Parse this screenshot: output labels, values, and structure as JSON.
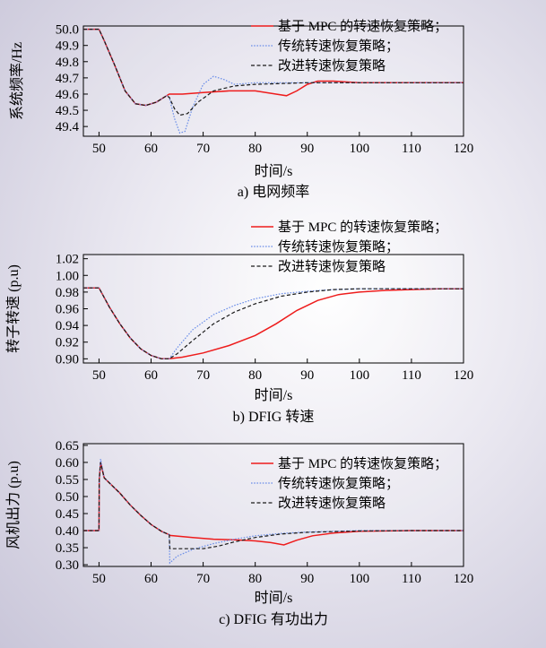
{
  "colors": {
    "mpc": "#ee1c1c",
    "traditional": "#6b8ee8",
    "improved": "#1a1a1a"
  },
  "chart_data": [
    {
      "type": "line",
      "caption": "a) 电网频率",
      "xlabel": "时间/s",
      "ylabel": "系统频率/Hz",
      "xlim": [
        47,
        120
      ],
      "ylim": [
        49.34,
        50.02
      ],
      "xticks": [
        50,
        60,
        70,
        80,
        90,
        100,
        110,
        120
      ],
      "yticks": [
        49.4,
        49.5,
        49.6,
        49.7,
        49.8,
        49.9,
        50.0
      ],
      "ytick_labels": [
        "49.4",
        "49.5",
        "49.6",
        "49.7",
        "49.8",
        "49.9",
        "50.0"
      ],
      "legend_position": "top-right",
      "series": [
        {
          "name": "基于 MPC 的转速恢复策略；",
          "style": "solid",
          "color_key": "mpc",
          "x": [
            47,
            50,
            51,
            53,
            55,
            57,
            59,
            61,
            63,
            63.5,
            66,
            70,
            75,
            80,
            84,
            86,
            88,
            90,
            92,
            95,
            100,
            110,
            120
          ],
          "y": [
            50.0,
            50.0,
            49.93,
            49.78,
            49.62,
            49.54,
            49.53,
            49.55,
            49.59,
            49.6,
            49.6,
            49.61,
            49.62,
            49.62,
            49.6,
            49.59,
            49.62,
            49.66,
            49.68,
            49.68,
            49.67,
            49.67,
            49.67
          ]
        },
        {
          "name": "传统转速恢复策略；",
          "style": "dotted",
          "color_key": "traditional",
          "x": [
            47,
            50,
            51,
            53,
            55,
            57,
            59,
            61,
            63,
            63.5,
            64.5,
            65.5,
            66.5,
            68,
            70,
            72,
            74,
            76,
            80,
            90,
            100,
            110,
            120
          ],
          "y": [
            50.0,
            50.0,
            49.93,
            49.78,
            49.62,
            49.54,
            49.53,
            49.55,
            49.59,
            49.58,
            49.45,
            49.36,
            49.37,
            49.52,
            49.66,
            49.71,
            49.69,
            49.66,
            49.67,
            49.67,
            49.67,
            49.67,
            49.67
          ]
        },
        {
          "name": "改进转速恢复策略",
          "style": "dashed",
          "color_key": "improved",
          "x": [
            47,
            50,
            51,
            53,
            55,
            57,
            59,
            61,
            63,
            63.5,
            64.5,
            65.5,
            67,
            69,
            72,
            76,
            80,
            90,
            100,
            110,
            120
          ],
          "y": [
            50.0,
            50.0,
            49.93,
            49.78,
            49.62,
            49.54,
            49.53,
            49.55,
            49.59,
            49.58,
            49.51,
            49.47,
            49.48,
            49.55,
            49.62,
            49.65,
            49.66,
            49.67,
            49.67,
            49.67,
            49.67
          ]
        }
      ]
    },
    {
      "type": "line",
      "caption": "b) DFIG 转速",
      "xlabel": "时间/s",
      "ylabel": "转子转速 (p.u)",
      "xlim": [
        47,
        120
      ],
      "ylim": [
        0.895,
        1.025
      ],
      "xticks": [
        50,
        60,
        70,
        80,
        90,
        100,
        110,
        120
      ],
      "yticks": [
        0.9,
        0.92,
        0.94,
        0.96,
        0.98,
        1.0,
        1.02
      ],
      "ytick_labels": [
        "0.90",
        "0.92",
        "0.94",
        "0.96",
        "0.98",
        "1.00",
        "1.02"
      ],
      "legend_position": "top-right",
      "series": [
        {
          "name": "基于 MPC 的转速恢复策略；",
          "style": "solid",
          "color_key": "mpc",
          "x": [
            47,
            50,
            52,
            54,
            56,
            58,
            60,
            62,
            63.5,
            66,
            70,
            75,
            80,
            84,
            88,
            92,
            96,
            100,
            105,
            110,
            115,
            120
          ],
          "y": [
            0.985,
            0.985,
            0.962,
            0.942,
            0.925,
            0.912,
            0.904,
            0.9,
            0.9,
            0.902,
            0.907,
            0.916,
            0.928,
            0.942,
            0.958,
            0.97,
            0.977,
            0.98,
            0.982,
            0.983,
            0.984,
            0.984
          ]
        },
        {
          "name": "传统转速恢复策略；",
          "style": "dotted",
          "color_key": "traditional",
          "x": [
            47,
            50,
            52,
            54,
            56,
            58,
            60,
            62,
            63.5,
            65,
            68,
            72,
            76,
            80,
            85,
            90,
            95,
            100,
            110,
            120
          ],
          "y": [
            0.985,
            0.985,
            0.962,
            0.942,
            0.925,
            0.912,
            0.904,
            0.9,
            0.9,
            0.913,
            0.935,
            0.953,
            0.964,
            0.972,
            0.978,
            0.981,
            0.983,
            0.984,
            0.984,
            0.984
          ]
        },
        {
          "name": "改进转速恢复策略",
          "style": "dashed",
          "color_key": "improved",
          "x": [
            47,
            50,
            52,
            54,
            56,
            58,
            60,
            62,
            63.5,
            65,
            68,
            72,
            76,
            80,
            85,
            90,
            95,
            100,
            110,
            120
          ],
          "y": [
            0.985,
            0.985,
            0.962,
            0.942,
            0.925,
            0.912,
            0.904,
            0.9,
            0.9,
            0.906,
            0.922,
            0.942,
            0.956,
            0.966,
            0.975,
            0.98,
            0.983,
            0.984,
            0.984,
            0.984
          ]
        }
      ]
    },
    {
      "type": "line",
      "caption": "c) DFIG 有功出力",
      "xlabel": "时间/s",
      "ylabel": "风机出力 (p.u)",
      "xlim": [
        47,
        120
      ],
      "ylim": [
        0.295,
        0.655
      ],
      "xticks": [
        50,
        60,
        70,
        80,
        90,
        100,
        110,
        120
      ],
      "yticks": [
        0.3,
        0.35,
        0.4,
        0.45,
        0.5,
        0.55,
        0.6,
        0.65
      ],
      "ytick_labels": [
        "0.30",
        "0.35",
        "0.40",
        "0.45",
        "0.50",
        "0.55",
        "0.60",
        "0.65"
      ],
      "legend_position": "top-right",
      "series": [
        {
          "name": "基于 MPC 的转速恢复策略；",
          "style": "solid",
          "color_key": "mpc",
          "x": [
            47,
            50,
            50.05,
            50.3,
            51,
            52,
            54,
            56,
            58,
            60,
            62,
            63.5,
            63.6,
            68,
            72,
            76,
            80,
            83,
            85.5,
            88,
            91,
            95,
            100,
            110,
            120
          ],
          "y": [
            0.4,
            0.4,
            0.55,
            0.6,
            0.555,
            0.54,
            0.51,
            0.475,
            0.445,
            0.418,
            0.398,
            0.388,
            0.386,
            0.38,
            0.375,
            0.373,
            0.37,
            0.365,
            0.358,
            0.372,
            0.385,
            0.393,
            0.398,
            0.4,
            0.4
          ]
        },
        {
          "name": "传统转速恢复策略；",
          "style": "dotted",
          "color_key": "traditional",
          "x": [
            47,
            50,
            50.05,
            50.3,
            51,
            52,
            54,
            56,
            58,
            60,
            62,
            63.5,
            63.6,
            65,
            68,
            72,
            76,
            80,
            85,
            90,
            100,
            110,
            120
          ],
          "y": [
            0.4,
            0.4,
            0.55,
            0.61,
            0.555,
            0.54,
            0.51,
            0.475,
            0.445,
            0.418,
            0.398,
            0.388,
            0.305,
            0.325,
            0.345,
            0.362,
            0.375,
            0.385,
            0.392,
            0.396,
            0.4,
            0.4,
            0.4
          ]
        },
        {
          "name": "改进转速恢复策略",
          "style": "dashed",
          "color_key": "improved",
          "x": [
            47,
            50,
            50.05,
            50.3,
            51,
            52,
            54,
            56,
            58,
            60,
            62,
            63.5,
            63.6,
            66,
            70,
            73,
            76,
            80,
            85,
            90,
            100,
            110,
            120
          ],
          "y": [
            0.4,
            0.4,
            0.55,
            0.6,
            0.555,
            0.54,
            0.51,
            0.475,
            0.445,
            0.418,
            0.398,
            0.388,
            0.347,
            0.347,
            0.347,
            0.355,
            0.367,
            0.38,
            0.39,
            0.395,
            0.399,
            0.4,
            0.4
          ]
        }
      ]
    }
  ]
}
